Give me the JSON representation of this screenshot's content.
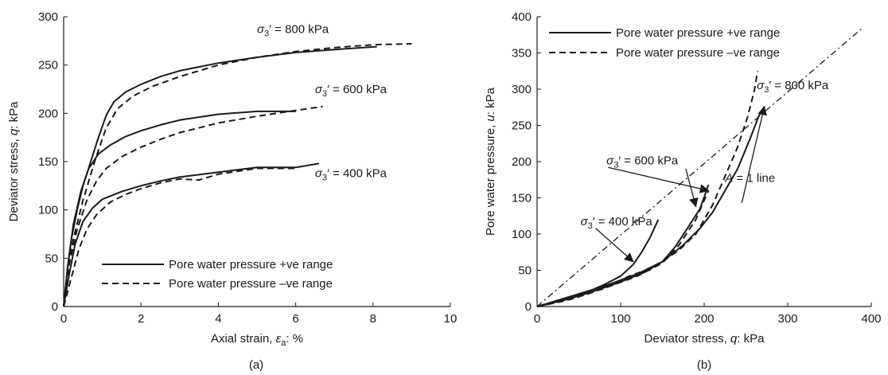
{
  "chart_data": [
    {
      "panel": "(a)",
      "type": "line",
      "xlabel_main": "Axial strain, ",
      "xlabel_sym": "ε",
      "xlabel_sub": "a",
      "xlabel_unit": ": %",
      "ylabel_main": "Deviator stress, ",
      "ylabel_sym": "q",
      "ylabel_unit": ": kPa",
      "xlim": [
        0,
        10
      ],
      "ylim": [
        0,
        300
      ],
      "xticks": [
        "0",
        "2",
        "4",
        "6",
        "8",
        "10"
      ],
      "yticks": [
        "0",
        "50",
        "100",
        "150",
        "200",
        "250",
        "300"
      ],
      "grid": false,
      "legend_position": "bottom-right",
      "legend": [
        {
          "label": "Pore water pressure +ve range",
          "style": "solid"
        },
        {
          "label": "Pore water pressure –ve range",
          "style": "dashed"
        }
      ],
      "annotations": [
        {
          "prefix": "σ",
          "sub": "3",
          "suffix": "′ = 800 kPa",
          "at": [
            5.0,
            283
          ]
        },
        {
          "prefix": "σ",
          "sub": "3",
          "suffix": "′ = 600 kPa",
          "at": [
            6.5,
            221
          ]
        },
        {
          "prefix": "σ",
          "sub": "3",
          "suffix": "′ = 400 kPa",
          "at": [
            6.5,
            134
          ]
        }
      ],
      "series": [
        {
          "style": "solid",
          "group": "800 kPa",
          "points": [
            [
              0,
              0
            ],
            [
              0.1,
              40
            ],
            [
              0.2,
              70
            ],
            [
              0.35,
              100
            ],
            [
              0.5,
              125
            ],
            [
              0.7,
              150
            ],
            [
              0.9,
              175
            ],
            [
              1.1,
              198
            ],
            [
              1.3,
              212
            ],
            [
              1.6,
              222
            ],
            [
              2,
              230
            ],
            [
              2.5,
              238
            ],
            [
              3,
              244
            ],
            [
              4,
              252
            ],
            [
              5,
              258
            ],
            [
              6,
              263
            ],
            [
              7,
              266
            ],
            [
              8.1,
              269
            ]
          ]
        },
        {
          "style": "dashed",
          "group": "800 kPa",
          "points": [
            [
              0,
              0
            ],
            [
              0.1,
              35
            ],
            [
              0.25,
              70
            ],
            [
              0.5,
              110
            ],
            [
              0.8,
              150
            ],
            [
              1.1,
              185
            ],
            [
              1.4,
              205
            ],
            [
              1.8,
              218
            ],
            [
              2.3,
              228
            ],
            [
              3,
              238
            ],
            [
              4,
              250
            ],
            [
              5,
              258
            ],
            [
              6,
              264
            ],
            [
              7,
              268
            ],
            [
              8,
              271
            ],
            [
              9,
              272
            ]
          ]
        },
        {
          "style": "solid",
          "group": "600 kPa",
          "points": [
            [
              0,
              0
            ],
            [
              0.1,
              40
            ],
            [
              0.25,
              85
            ],
            [
              0.45,
              120
            ],
            [
              0.65,
              143
            ],
            [
              0.9,
              158
            ],
            [
              1.2,
              167
            ],
            [
              1.6,
              176
            ],
            [
              2,
              182
            ],
            [
              2.5,
              188
            ],
            [
              3,
              193
            ],
            [
              4,
              199
            ],
            [
              5,
              202
            ],
            [
              6,
              202
            ]
          ]
        },
        {
          "style": "dashed",
          "group": "600 kPa",
          "points": [
            [
              0,
              0
            ],
            [
              0.15,
              45
            ],
            [
              0.35,
              80
            ],
            [
              0.6,
              110
            ],
            [
              0.85,
              130
            ],
            [
              1.1,
              143
            ],
            [
              1.5,
              155
            ],
            [
              2,
              165
            ],
            [
              2.5,
              173
            ],
            [
              3,
              180
            ],
            [
              4,
              190
            ],
            [
              5,
              197
            ],
            [
              6,
              203
            ],
            [
              6.7,
              207
            ]
          ]
        },
        {
          "style": "solid",
          "group": "400 kPa",
          "points": [
            [
              0,
              0
            ],
            [
              0.15,
              35
            ],
            [
              0.3,
              65
            ],
            [
              0.5,
              88
            ],
            [
              0.75,
              102
            ],
            [
              1,
              111
            ],
            [
              1.5,
              119
            ],
            [
              2,
              125
            ],
            [
              2.5,
              130
            ],
            [
              3,
              134
            ],
            [
              4,
              139
            ],
            [
              5,
              144
            ],
            [
              6,
              144
            ],
            [
              6.6,
              148
            ]
          ]
        },
        {
          "style": "dashed",
          "group": "400 kPa",
          "points": [
            [
              0,
              0
            ],
            [
              0.2,
              30
            ],
            [
              0.4,
              60
            ],
            [
              0.6,
              80
            ],
            [
              0.85,
              95
            ],
            [
              1.2,
              108
            ],
            [
              1.6,
              116
            ],
            [
              2,
              122
            ],
            [
              2.5,
              128
            ],
            [
              3,
              132
            ],
            [
              3.5,
              131
            ],
            [
              4,
              137
            ],
            [
              4.5,
              140
            ],
            [
              5,
              143
            ],
            [
              6,
              143
            ]
          ]
        }
      ]
    },
    {
      "panel": "(b)",
      "type": "line",
      "xlabel_main": "Deviator stress, ",
      "xlabel_sym": "q",
      "xlabel_unit": ": kPa",
      "ylabel_main": "Pore water pressure, ",
      "ylabel_sym": "u",
      "ylabel_unit": ": kPa",
      "xlim": [
        0,
        400
      ],
      "ylim": [
        0,
        400
      ],
      "xticks": [
        "0",
        "100",
        "200",
        "300",
        "400"
      ],
      "yticks": [
        "0",
        "50",
        "100",
        "150",
        "200",
        "250",
        "300",
        "350",
        "400"
      ],
      "grid": false,
      "legend_position": "top-left",
      "legend": [
        {
          "label": "Pore water pressure +ve range",
          "style": "solid"
        },
        {
          "label": "Pore water pressure –ve range",
          "style": "dashed"
        }
      ],
      "annotations": [
        {
          "prefix": "σ",
          "sub": "3",
          "suffix": "′ = 800 kPa",
          "at": [
            263,
            300
          ]
        },
        {
          "prefix": "σ",
          "sub": "3",
          "suffix": "′ = 600 kPa",
          "at": [
            83,
            196
          ]
        },
        {
          "prefix": "σ",
          "sub": "3",
          "suffix": "′ = 400 kPa",
          "at": [
            52,
            112
          ]
        },
        {
          "text": "A = 1 line",
          "at": [
            225,
            172
          ]
        }
      ],
      "reference_line": {
        "label": "A = 1 line",
        "style": "dash-dot",
        "points": [
          [
            0,
            0
          ],
          [
            390,
            385
          ]
        ]
      },
      "series": [
        {
          "style": "solid",
          "group": "400 kPa",
          "points": [
            [
              0,
              0
            ],
            [
              20,
              6
            ],
            [
              40,
              13
            ],
            [
              60,
              20
            ],
            [
              80,
              30
            ],
            [
              100,
              42
            ],
            [
              115,
              58
            ],
            [
              125,
              75
            ],
            [
              135,
              95
            ],
            [
              145,
              120
            ]
          ]
        },
        {
          "style": "dashed",
          "group": "400 kPa",
          "points": [
            [
              0,
              0
            ],
            [
              30,
              7
            ],
            [
              60,
              17
            ],
            [
              90,
              30
            ],
            [
              110,
              42
            ],
            [
              125,
              48
            ],
            [
              140,
              52
            ]
          ]
        },
        {
          "style": "solid",
          "group": "600 kPa",
          "points": [
            [
              0,
              0
            ],
            [
              30,
              8
            ],
            [
              60,
              18
            ],
            [
              100,
              34
            ],
            [
              130,
              48
            ],
            [
              150,
              62
            ],
            [
              165,
              82
            ],
            [
              180,
              108
            ],
            [
              195,
              135
            ],
            [
              205,
              168
            ]
          ]
        },
        {
          "style": "dashed",
          "group": "600 kPa",
          "points": [
            [
              0,
              0
            ],
            [
              40,
              10
            ],
            [
              80,
              25
            ],
            [
              120,
              42
            ],
            [
              150,
              60
            ],
            [
              170,
              85
            ],
            [
              190,
              120
            ],
            [
              205,
              160
            ]
          ]
        },
        {
          "style": "solid",
          "group": "800 kPa",
          "points": [
            [
              0,
              0
            ],
            [
              40,
              14
            ],
            [
              80,
              28
            ],
            [
              120,
              45
            ],
            [
              150,
              62
            ],
            [
              175,
              85
            ],
            [
              195,
              108
            ],
            [
              210,
              130
            ],
            [
              225,
              160
            ],
            [
              240,
              190
            ],
            [
              255,
              232
            ],
            [
              265,
              262
            ],
            [
              272,
              276
            ]
          ]
        },
        {
          "style": "dashed",
          "group": "800 kPa",
          "points": [
            [
              0,
              0
            ],
            [
              40,
              10
            ],
            [
              80,
              25
            ],
            [
              120,
              45
            ],
            [
              150,
              62
            ],
            [
              170,
              78
            ],
            [
              190,
              100
            ],
            [
              210,
              140
            ],
            [
              225,
              180
            ],
            [
              240,
              220
            ],
            [
              252,
              262
            ],
            [
              260,
              298
            ],
            [
              264,
              325
            ]
          ]
        }
      ],
      "arrows": [
        {
          "from": [
            245,
            143
          ],
          "to": [
            272,
            276
          ]
        },
        {
          "from": [
            178,
            190
          ],
          "to": [
            190,
            138
          ]
        },
        {
          "from": [
            70,
            108
          ],
          "to": [
            115,
            62
          ]
        },
        {
          "from": [
            85,
            192
          ],
          "to": [
            205,
            160
          ]
        }
      ]
    }
  ]
}
